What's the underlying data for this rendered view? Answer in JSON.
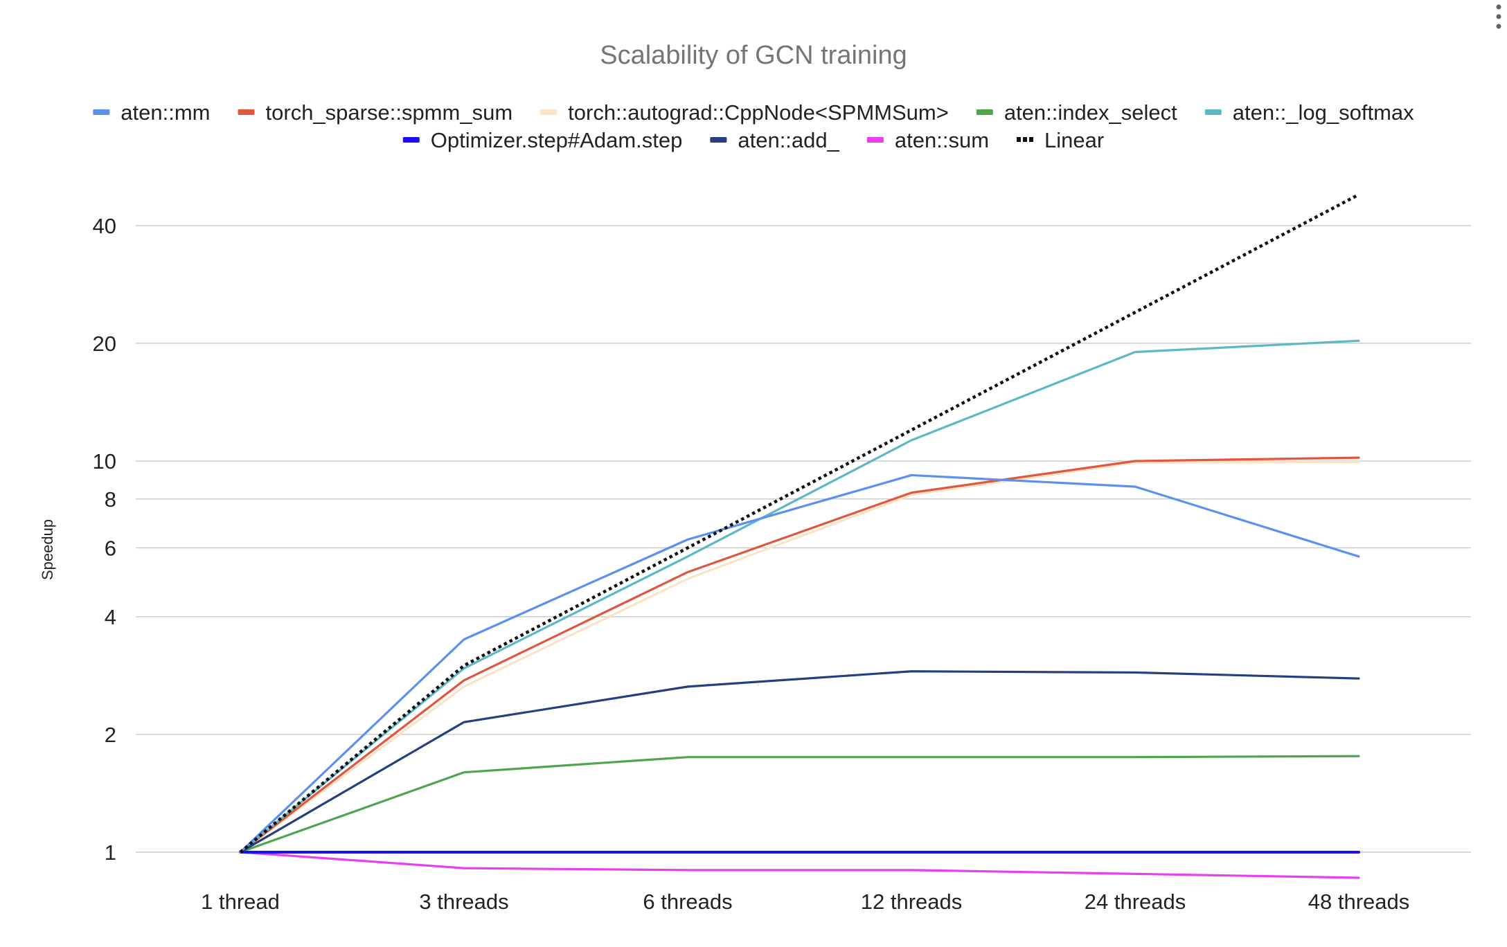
{
  "chart_data": {
    "type": "line",
    "title": "Scalability of GCN training",
    "xlabel": "",
    "ylabel": "Speedup",
    "y_scale": "log",
    "ylim": [
      0.8,
      50
    ],
    "y_ticks": [
      1,
      2,
      4,
      6,
      8,
      10,
      20,
      40
    ],
    "grid": true,
    "legend_position": "top",
    "categories": [
      "1 thread",
      "3 threads",
      "6 threads",
      "12 threads",
      "24 threads",
      "48 threads"
    ],
    "series": [
      {
        "name": "aten::mm",
        "color": "#5b8ff0",
        "style": "solid",
        "values": [
          1,
          3.5,
          6.3,
          9.2,
          8.6,
          5.7
        ]
      },
      {
        "name": "torch_sparse::spmm_sum",
        "color": "#e2553f",
        "style": "solid",
        "values": [
          1,
          2.75,
          5.2,
          8.3,
          10.0,
          10.2
        ]
      },
      {
        "name": "torch::autograd::CppNode<SPMMSum>",
        "color": "#fbe3c6",
        "style": "solid",
        "values": [
          1,
          2.65,
          5.0,
          8.2,
          9.9,
          9.95
        ]
      },
      {
        "name": "aten::index_select",
        "color": "#4ea54e",
        "style": "solid",
        "values": [
          1,
          1.6,
          1.75,
          1.75,
          1.75,
          1.76
        ]
      },
      {
        "name": "aten::_log_softmax",
        "color": "#5bb9c6",
        "style": "solid",
        "values": [
          1,
          2.95,
          5.7,
          11.3,
          19.0,
          20.3
        ]
      },
      {
        "name": "Optimizer.step#Adam.step",
        "color": "#1c0ff2",
        "style": "solid",
        "values": [
          1,
          1,
          1,
          1,
          1,
          1
        ]
      },
      {
        "name": "aten::add_",
        "color": "#253f80",
        "style": "solid",
        "values": [
          1,
          2.15,
          2.65,
          2.9,
          2.88,
          2.78
        ]
      },
      {
        "name": "aten::sum",
        "color": "#e83ef0",
        "style": "solid",
        "values": [
          1,
          0.91,
          0.9,
          0.9,
          0.88,
          0.86
        ]
      },
      {
        "name": "Linear",
        "color": "#111111",
        "style": "dotted",
        "values": [
          1,
          3,
          6,
          12,
          24,
          48
        ]
      }
    ]
  }
}
